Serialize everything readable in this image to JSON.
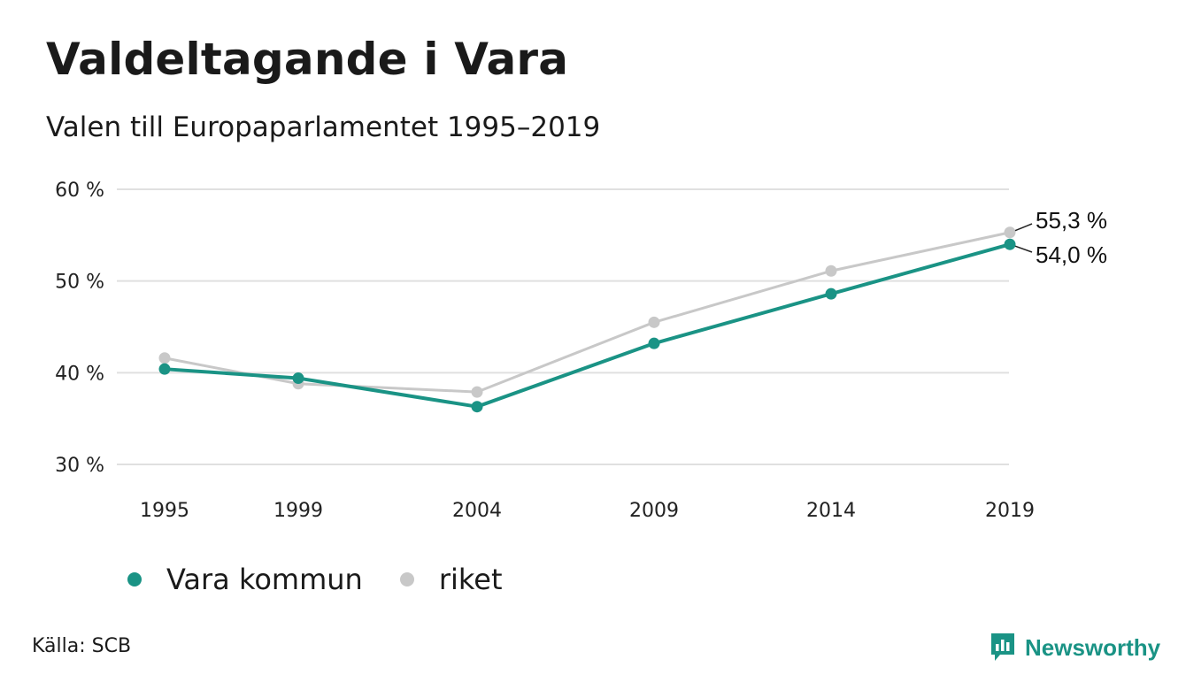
{
  "header": {
    "title": "Valdeltagande i Vara",
    "subtitle": "Valen till Europaparlamentet 1995–2019"
  },
  "chart_data": {
    "type": "line",
    "x": [
      "1995",
      "1999",
      "2004",
      "2009",
      "2014",
      "2019"
    ],
    "series": [
      {
        "name": "Vara kommun",
        "color": "#1a9385",
        "values": [
          40.4,
          39.4,
          36.3,
          43.2,
          48.6,
          54.0
        ]
      },
      {
        "name": "riket",
        "color": "#c8c8c8",
        "values": [
          41.6,
          38.8,
          37.9,
          45.5,
          51.1,
          55.3
        ]
      }
    ],
    "ylim": [
      30,
      60
    ],
    "yticks": [
      30,
      40,
      50,
      60
    ],
    "ytick_labels": [
      "30 %",
      "40 %",
      "50 %",
      "60 %"
    ],
    "end_labels": {
      "riket": "55,3 %",
      "Vara kommun": "54,0 %"
    },
    "grid": true,
    "legend_position": "bottom-left"
  },
  "footer": {
    "source": "Källa: SCB",
    "brand": "Newsworthy",
    "brand_color": "#1a9385",
    "brand_icon": "newsworthy-logo-icon"
  }
}
